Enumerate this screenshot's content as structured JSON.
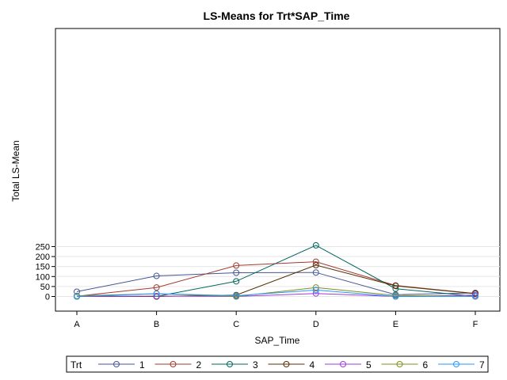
{
  "chart_data": {
    "type": "line",
    "title": "LS-Means for Trt*SAP_Time",
    "xlabel": "SAP_Time",
    "ylabel": "Total LS-Mean",
    "categories": [
      "A",
      "B",
      "C",
      "D",
      "E",
      "F"
    ],
    "yticks": [
      0,
      50,
      100,
      150,
      200,
      250
    ],
    "ylim": [
      -15,
      270
    ],
    "grid": "horizontal",
    "legend": {
      "title": "Trt",
      "placement": "bottom"
    },
    "series": [
      {
        "name": "1",
        "color": "#445694",
        "values": [
          24,
          103,
          119,
          120,
          9,
          18
        ]
      },
      {
        "name": "2",
        "color": "#A23A2E",
        "values": [
          1,
          45,
          155,
          174,
          55,
          15
        ]
      },
      {
        "name": "3",
        "color": "#01665E",
        "values": [
          2,
          0,
          76,
          256,
          39,
          1
        ]
      },
      {
        "name": "4",
        "color": "#543005",
        "values": [
          0,
          0,
          7,
          157,
          53,
          14
        ]
      },
      {
        "name": "5",
        "color": "#9D3CDB",
        "values": [
          0,
          2,
          0,
          15,
          0,
          7
        ]
      },
      {
        "name": "6",
        "color": "#7F8E1F",
        "values": [
          3,
          14,
          0,
          45,
          5,
          0
        ]
      },
      {
        "name": "7",
        "color": "#2597FA",
        "values": [
          0,
          14,
          4,
          32,
          0,
          1
        ]
      }
    ]
  }
}
